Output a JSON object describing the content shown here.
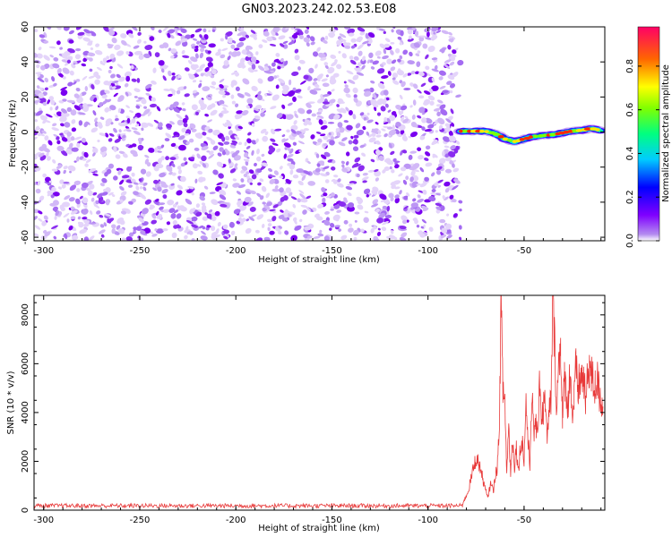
{
  "chart_data": [
    {
      "type": "heatmap",
      "title": "GN03.2023.242.02.53.E08",
      "xlabel": "Height of straight line (km)",
      "ylabel": "Frequency (Hz)",
      "xlim": [
        -305,
        -8
      ],
      "ylim": [
        -62,
        60
      ],
      "xticks": [
        -300,
        -250,
        -200,
        -150,
        -100,
        -50
      ],
      "yticks": [
        60,
        40,
        20,
        0,
        -20,
        -40,
        -60
      ],
      "noise_region_x": [
        -305,
        -83
      ],
      "signal_band": {
        "x": [
          -83,
          -75,
          -70,
          -65,
          -60,
          -55,
          -50,
          -45,
          -40,
          -35,
          -30,
          -25,
          -20,
          -15,
          -10
        ],
        "frequency": [
          0.5,
          0.5,
          0.5,
          -1,
          -4,
          -5.5,
          -4,
          -2.5,
          -2,
          -1.5,
          -0.5,
          0.5,
          1,
          2,
          1
        ]
      },
      "colorbar": {
        "label": "Normalized spectral amplitude",
        "ticks": [
          0.0,
          0.2,
          0.4,
          0.6,
          0.8
        ],
        "range": [
          0.0,
          0.98
        ],
        "colormap": "rainbow"
      }
    },
    {
      "type": "line",
      "xlabel": "Height of straight line (km)",
      "ylabel": "SNR (10 * v/v)",
      "xlim": [
        -305,
        -8
      ],
      "ylim": [
        0,
        8800
      ],
      "xticks": [
        -300,
        -250,
        -200,
        -150,
        -100,
        -50
      ],
      "yticks": [
        0,
        2000,
        4000,
        6000,
        8000
      ],
      "color": "#e83a3a",
      "noise_floor": {
        "x_range": [
          -305,
          -82
        ],
        "mean": 180,
        "amplitude": 90
      },
      "series": [
        {
          "x": [
            -82,
            -79,
            -77,
            -75,
            -73,
            -71,
            -69,
            -67,
            -66,
            -65,
            -64,
            -63,
            -62,
            -61,
            -60,
            -59,
            -58,
            -57,
            -56,
            -55,
            -54,
            -53,
            -52,
            -51,
            -50,
            -49,
            -48,
            -47,
            -46,
            -45,
            -44,
            -43,
            -42,
            -41,
            -40,
            -39,
            -38,
            -37,
            -36,
            -35,
            -34,
            -33,
            -32,
            -31,
            -30,
            -29,
            -28,
            -27,
            -26,
            -25,
            -24,
            -23,
            -22,
            -21,
            -20,
            -19,
            -18,
            -17,
            -16,
            -15,
            -14,
            -13,
            -12,
            -11,
            -10,
            -9
          ],
          "y": [
            250,
            800,
            1500,
            2150,
            1800,
            1100,
            500,
            1200,
            700,
            1500,
            1700,
            3000,
            8400,
            5000,
            4400,
            1500,
            3500,
            1500,
            3000,
            1800,
            2600,
            1600,
            2500,
            2900,
            2000,
            4500,
            2900,
            1800,
            5000,
            3000,
            3800,
            2700,
            5700,
            3800,
            4100,
            4700,
            2700,
            4000,
            4500,
            8700,
            6500,
            4200,
            5900,
            7000,
            3500,
            5500,
            4800,
            4300,
            6000,
            3800,
            4500,
            5800,
            4900,
            5300,
            5400,
            5500,
            4300,
            5400,
            6000,
            5500,
            5200,
            5000,
            5400,
            4800,
            4600,
            4200
          ]
        }
      ]
    }
  ]
}
